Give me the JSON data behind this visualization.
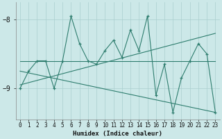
{
  "xlabel": "Humidex (Indice chaleur)",
  "bg_color": "#cce8e8",
  "line_color": "#2e7d6e",
  "grid_color": "#aacfcf",
  "xlim": [
    -0.5,
    23.5
  ],
  "ylim": [
    -9.45,
    -7.75
  ],
  "yticks": [
    -9,
    -8
  ],
  "xticks": [
    0,
    1,
    2,
    3,
    4,
    5,
    6,
    7,
    8,
    9,
    10,
    11,
    12,
    13,
    14,
    15,
    16,
    17,
    18,
    19,
    20,
    21,
    22,
    23
  ],
  "series1_x": [
    0,
    1,
    2,
    3,
    4,
    5,
    6,
    7,
    8,
    9,
    10,
    11,
    12,
    13,
    14,
    15,
    16,
    17,
    18,
    19,
    20,
    21,
    22,
    23
  ],
  "series1_y": [
    -9.0,
    -8.75,
    -8.6,
    -8.6,
    -9.0,
    -8.6,
    -7.95,
    -8.35,
    -8.6,
    -8.65,
    -8.45,
    -8.3,
    -8.55,
    -8.15,
    -8.45,
    -7.95,
    -9.1,
    -8.65,
    -9.35,
    -8.85,
    -8.6,
    -8.35,
    -8.5,
    -9.35
  ],
  "trend1_x": [
    0,
    23
  ],
  "trend1_y": [
    -8.6,
    -8.6
  ],
  "trend2_x": [
    0,
    23
  ],
  "trend2_y": [
    -8.95,
    -8.2
  ],
  "trend3_x": [
    0,
    23
  ],
  "trend3_y": [
    -8.75,
    -9.35
  ]
}
